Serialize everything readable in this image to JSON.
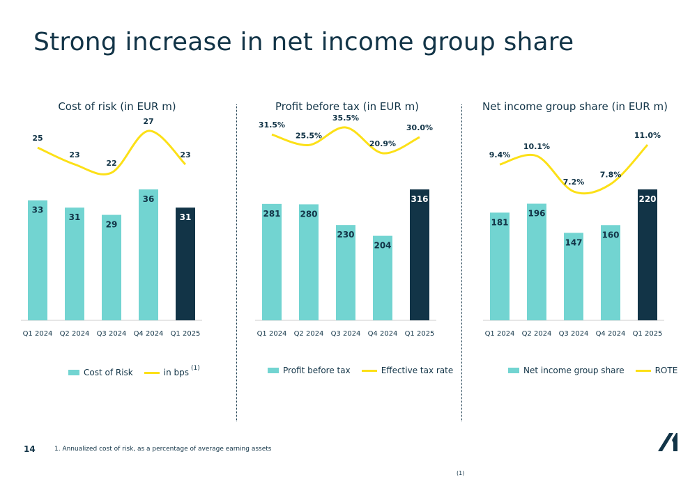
{
  "slide": {
    "title": "Strong increase in net income group share",
    "page_number": "14",
    "footnote": "1.    Annualized cost of risk, as a percentage of average earning assets",
    "bottom_mark": "(1)"
  },
  "colors": {
    "bar": "#72d4d1",
    "bar_highlight": "#123447",
    "line": "#fce017",
    "text": "#123447"
  },
  "chart_data": [
    {
      "type": "bar",
      "title": "Cost of risk (in EUR m)",
      "categories": [
        "Q1 2024",
        "Q2 2024",
        "Q3 2024",
        "Q4 2024",
        "Q1 2025"
      ],
      "series": [
        {
          "name": "Cost of Risk",
          "values": [
            33,
            31,
            29,
            36,
            31
          ],
          "labels": [
            "33",
            "31",
            "29",
            "36",
            "31"
          ]
        },
        {
          "name": "in bps",
          "type": "line",
          "values": [
            25,
            23,
            22,
            27,
            23
          ],
          "labels": [
            "25",
            "23",
            "22",
            "27",
            "23"
          ]
        }
      ],
      "ylim": [
        0,
        45
      ],
      "highlight_last": true,
      "legend": {
        "bar": "Cost of Risk",
        "line": "in bps",
        "line_sup": "(1)"
      }
    },
    {
      "type": "bar",
      "title": "Profit before tax (in EUR m)",
      "categories": [
        "Q1 2024",
        "Q2 2024",
        "Q3 2024",
        "Q4 2024",
        "Q1 2025"
      ],
      "series": [
        {
          "name": "Profit before tax",
          "values": [
            281,
            280,
            230,
            204,
            316
          ],
          "labels": [
            "281",
            "280",
            "230",
            "204",
            "316"
          ]
        },
        {
          "name": "Effective tax rate",
          "type": "line",
          "values": [
            31.5,
            25.5,
            35.5,
            20.9,
            30.0
          ],
          "labels": [
            "31.5%",
            "25.5%",
            "35.5%",
            "20.9%",
            "30.0%"
          ]
        }
      ],
      "ylim": [
        0,
        395
      ],
      "highlight_last": true,
      "legend": {
        "bar": "Profit before tax",
        "line": "Effective tax rate"
      }
    },
    {
      "type": "bar",
      "title": "Net income group share (in EUR m)",
      "categories": [
        "Q1 2024",
        "Q2 2024",
        "Q3 2024",
        "Q4 2024",
        "Q1 2025"
      ],
      "series": [
        {
          "name": "Net income group share",
          "values": [
            181,
            196,
            147,
            160,
            220
          ],
          "labels": [
            "181",
            "196",
            "147",
            "160",
            "220"
          ]
        },
        {
          "name": "ROTE",
          "type": "line",
          "values": [
            9.4,
            10.1,
            7.2,
            7.8,
            11.0
          ],
          "labels": [
            "9.4%",
            "10.1%",
            "7.2%",
            "7.8%",
            "11.0%"
          ]
        }
      ],
      "ylim": [
        0,
        275
      ],
      "highlight_last": true,
      "legend": {
        "bar": "Net income group share",
        "line": "ROTE"
      }
    }
  ]
}
